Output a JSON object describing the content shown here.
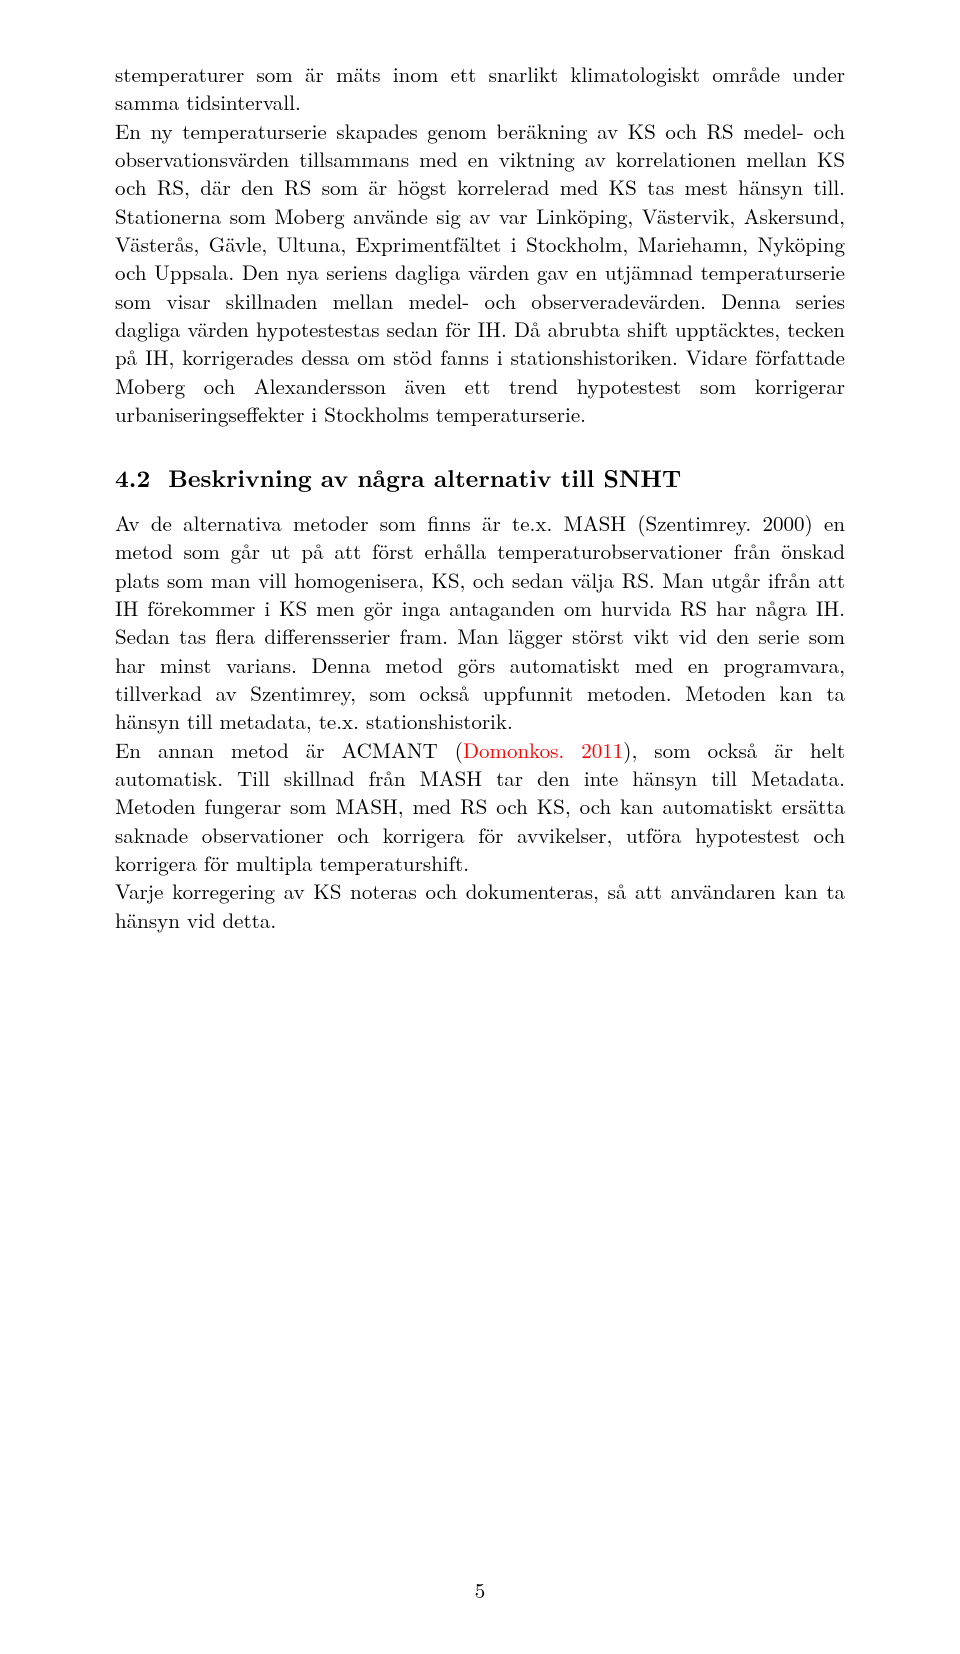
{
  "body": {
    "para1": "stemperaturer som är mäts inom ett snarlikt klimatologiskt område under samma tidsintervall.",
    "para2_pre": "En ny temperaturserie skapades genom beräkning av KS och RS medel- och observationsvärden tillsammans med en viktning av korrelationen mellan KS och RS, där den RS som är högst korrelerad med KS tas mest hänsyn till. Stationerna som Moberg använde sig av var Linköping, Västervik, Askersund, Västerås, Gävle, Ultuna, Exprimentfältet i Stockholm, Mariehamn, Nyköping och Uppsala. Den nya seriens dagliga värden gav en utjämnad temperaturserie som visar skillnaden mellan medel- och observeradevärden. Denna series dagliga värden hypotestestas sedan för IH. Då abrubta shift upptäcktes, tecken på IH, korrigerades dessa om stöd fanns i stationshistoriken. Vidare författade Moberg och Alexandersson även ett trend hypotestest som korrigerar urbaniseringseffekter i Stockholms temperaturserie."
  },
  "section": {
    "number": "4.2",
    "title": "Beskrivning av några alternativ till SNHT"
  },
  "body2": {
    "para3": "Av de alternativa metoder som finns är te.x. MASH (Szentimrey. 2000) en metod som går ut på att först erhålla temperaturobservationer från önskad plats som man vill homogenisera, KS, och sedan välja RS. Man utgår ifrån att IH förekommer i KS men gör inga antaganden om hurvida RS har några IH. Sedan tas flera differensserier fram. Man lägger störst vikt vid den serie som har minst varians. Denna metod görs automatiskt med en programvara, tillverkad av Szentimrey, som också uppfunnit metoden. Metoden kan ta hänsyn till metadata, te.x. stationshistorik.",
    "para4_a": "En annan metod är ACMANT (",
    "para4_ref": "Domonkos. 2011",
    "para4_b": "), som också är helt automatisk. Till skillnad från MASH tar den inte hänsyn till Metadata. Metoden fungerar som MASH, med RS och KS, och kan automatiskt ersätta saknade observationer och korrigera för avvikelser, utföra hypotestest och korrigera för multipla temperaturshift.",
    "para5": "Varje korregering av KS noteras och dokumenteras, så att användaren kan ta hänsyn vid detta."
  },
  "page_number": "5",
  "colors": {
    "ref_color": "#ff0000",
    "text_color": "#000000",
    "bg_color": "#ffffff"
  }
}
